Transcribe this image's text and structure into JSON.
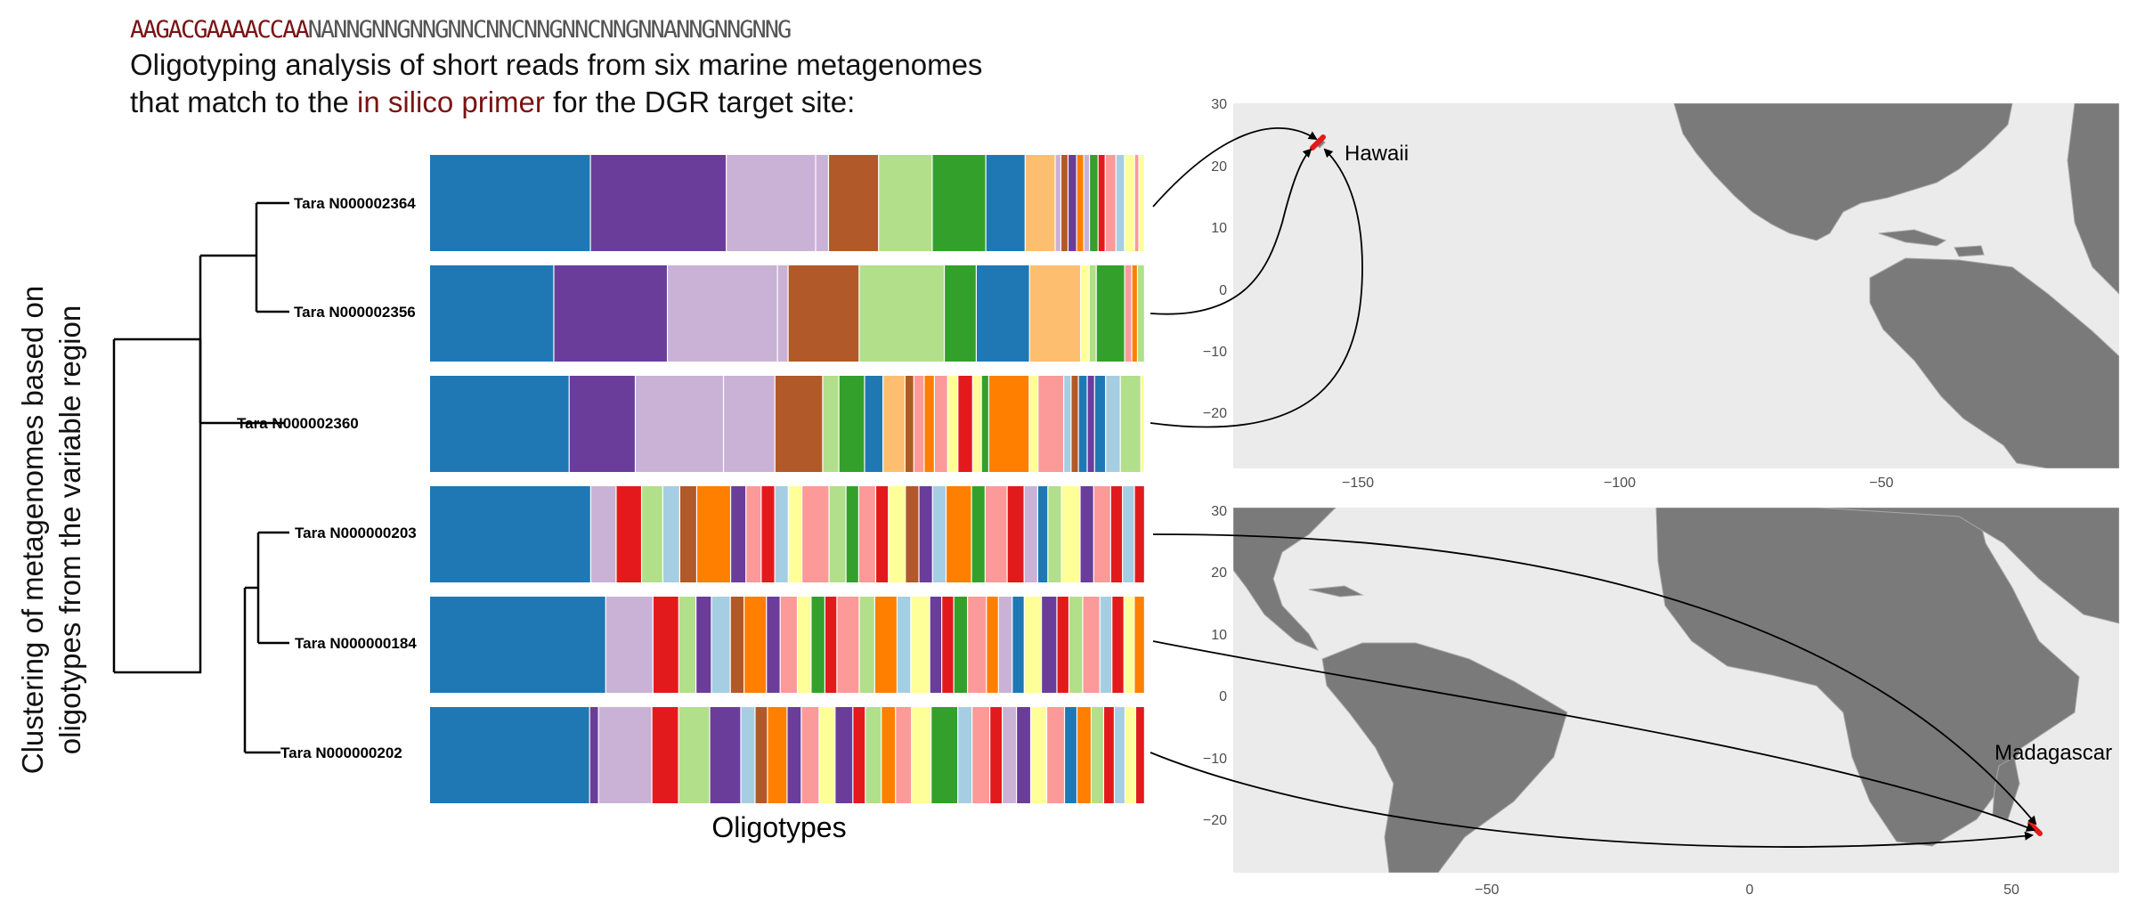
{
  "header": {
    "sequence_prefix": "AAGACGAAAACCAA",
    "sequence_variable": "NANNGNNGNNGNNCNNCNNGNNCNNGNNANNGNNGNNG",
    "title_line1": "Oligotyping analysis of short reads from six marine metagenomes",
    "title_line2_before": "that match to the ",
    "title_line2_highlight": "in silico primer",
    "title_line2_after": " for the DGR target site:"
  },
  "dendrogram": {
    "ylabel_line1": "Clustering of metagenomes based on",
    "ylabel_line2": "oligotypes from the variable region",
    "samples": [
      "Tara N000002364",
      "Tara N000002356",
      "Tara N000002360",
      "Tara N000000203",
      "Tara N000000184",
      "Tara N000000202"
    ]
  },
  "oligotypes": {
    "xlabel": "Oligotypes",
    "palette": [
      "#1f78b4",
      "#6a3d9a",
      "#cab2d6",
      "#b15928",
      "#b2df8a",
      "#33a02c",
      "#fdbf6f",
      "#ff7f00",
      "#e31a1c",
      "#fb9a99",
      "#a6cee3",
      "#ffff99"
    ],
    "rows": [
      [
        [
          0,
          0.225
        ],
        [
          1,
          0.19
        ],
        [
          2,
          0.125
        ],
        [
          2,
          0.018
        ],
        [
          3,
          0.07
        ],
        [
          4,
          0.075
        ],
        [
          5,
          0.075
        ],
        [
          0,
          0.055
        ],
        [
          6,
          0.042
        ],
        [
          2,
          0.008
        ],
        [
          3,
          0.01
        ],
        [
          1,
          0.012
        ],
        [
          7,
          0.01
        ],
        [
          2,
          0.008
        ],
        [
          5,
          0.012
        ],
        [
          8,
          0.01
        ],
        [
          9,
          0.015
        ],
        [
          10,
          0.012
        ],
        [
          11,
          0.014
        ],
        [
          9,
          0.006
        ],
        [
          11,
          0.008
        ]
      ],
      [
        [
          0,
          0.175
        ],
        [
          1,
          0.16
        ],
        [
          2,
          0.155
        ],
        [
          2,
          0.015
        ],
        [
          3,
          0.1
        ],
        [
          4,
          0.12
        ],
        [
          5,
          0.045
        ],
        [
          0,
          0.075
        ],
        [
          6,
          0.072
        ],
        [
          11,
          0.012
        ],
        [
          4,
          0.01
        ],
        [
          5,
          0.04
        ],
        [
          9,
          0.01
        ],
        [
          7,
          0.008
        ],
        [
          4,
          0.01
        ]
      ],
      [
        [
          0,
          0.19
        ],
        [
          1,
          0.09
        ],
        [
          2,
          0.12
        ],
        [
          2,
          0.07
        ],
        [
          3,
          0.065
        ],
        [
          4,
          0.022
        ],
        [
          5,
          0.035
        ],
        [
          0,
          0.025
        ],
        [
          6,
          0.03
        ],
        [
          3,
          0.012
        ],
        [
          9,
          0.014
        ],
        [
          7,
          0.014
        ],
        [
          9,
          0.018
        ],
        [
          11,
          0.014
        ],
        [
          8,
          0.02
        ],
        [
          11,
          0.012
        ],
        [
          5,
          0.01
        ],
        [
          7,
          0.055
        ],
        [
          11,
          0.012
        ],
        [
          9,
          0.035
        ],
        [
          10,
          0.01
        ],
        [
          3,
          0.01
        ],
        [
          0,
          0.012
        ],
        [
          1,
          0.01
        ],
        [
          0,
          0.015
        ],
        [
          10,
          0.02
        ],
        [
          4,
          0.028
        ],
        [
          11,
          0.005
        ]
      ],
      [
        [
          0,
          0.19
        ],
        [
          2,
          0.03
        ],
        [
          8,
          0.03
        ],
        [
          4,
          0.025
        ],
        [
          10,
          0.02
        ],
        [
          3,
          0.02
        ],
        [
          7,
          0.04
        ],
        [
          1,
          0.018
        ],
        [
          9,
          0.018
        ],
        [
          8,
          0.016
        ],
        [
          10,
          0.016
        ],
        [
          11,
          0.016
        ],
        [
          9,
          0.032
        ],
        [
          4,
          0.02
        ],
        [
          5,
          0.015
        ],
        [
          9,
          0.02
        ],
        [
          8,
          0.015
        ],
        [
          11,
          0.02
        ],
        [
          3,
          0.016
        ],
        [
          1,
          0.016
        ],
        [
          10,
          0.016
        ],
        [
          7,
          0.03
        ],
        [
          5,
          0.016
        ],
        [
          9,
          0.026
        ],
        [
          8,
          0.02
        ],
        [
          2,
          0.016
        ],
        [
          0,
          0.012
        ],
        [
          4,
          0.016
        ],
        [
          11,
          0.022
        ],
        [
          1,
          0.016
        ],
        [
          9,
          0.02
        ],
        [
          8,
          0.014
        ],
        [
          10,
          0.014
        ],
        [
          8,
          0.012
        ]
      ],
      [
        [
          0,
          0.205
        ],
        [
          2,
          0.055
        ],
        [
          8,
          0.03
        ],
        [
          4,
          0.02
        ],
        [
          1,
          0.018
        ],
        [
          10,
          0.022
        ],
        [
          3,
          0.016
        ],
        [
          7,
          0.026
        ],
        [
          1,
          0.016
        ],
        [
          9,
          0.02
        ],
        [
          11,
          0.016
        ],
        [
          5,
          0.016
        ],
        [
          8,
          0.014
        ],
        [
          9,
          0.026
        ],
        [
          4,
          0.018
        ],
        [
          7,
          0.026
        ],
        [
          10,
          0.016
        ],
        [
          11,
          0.022
        ],
        [
          1,
          0.014
        ],
        [
          8,
          0.014
        ],
        [
          5,
          0.016
        ],
        [
          9,
          0.022
        ],
        [
          7,
          0.014
        ],
        [
          2,
          0.016
        ],
        [
          0,
          0.014
        ],
        [
          11,
          0.02
        ],
        [
          1,
          0.018
        ],
        [
          8,
          0.014
        ],
        [
          4,
          0.016
        ],
        [
          9,
          0.02
        ],
        [
          10,
          0.014
        ],
        [
          8,
          0.014
        ],
        [
          11,
          0.012
        ],
        [
          7,
          0.012
        ]
      ],
      [
        [
          0,
          0.18
        ],
        [
          1,
          0.01
        ],
        [
          2,
          0.06
        ],
        [
          8,
          0.03
        ],
        [
          4,
          0.035
        ],
        [
          1,
          0.035
        ],
        [
          10,
          0.016
        ],
        [
          3,
          0.014
        ],
        [
          7,
          0.022
        ],
        [
          1,
          0.016
        ],
        [
          9,
          0.02
        ],
        [
          11,
          0.018
        ],
        [
          1,
          0.02
        ],
        [
          8,
          0.014
        ],
        [
          4,
          0.018
        ],
        [
          7,
          0.016
        ],
        [
          9,
          0.018
        ],
        [
          11,
          0.022
        ],
        [
          5,
          0.03
        ],
        [
          10,
          0.016
        ],
        [
          9,
          0.02
        ],
        [
          8,
          0.014
        ],
        [
          2,
          0.016
        ],
        [
          1,
          0.016
        ],
        [
          11,
          0.018
        ],
        [
          9,
          0.02
        ],
        [
          0,
          0.014
        ],
        [
          7,
          0.016
        ],
        [
          4,
          0.014
        ],
        [
          8,
          0.012
        ],
        [
          10,
          0.012
        ],
        [
          11,
          0.012
        ],
        [
          8,
          0.01
        ]
      ]
    ]
  },
  "map_top": {
    "label": "Hawaii",
    "x_ticks": [
      "−150",
      "−100",
      "−50"
    ],
    "y_ticks": [
      "30",
      "20",
      "10",
      "0",
      "−10",
      "−20"
    ]
  },
  "map_bottom": {
    "label": "Madagascar",
    "x_ticks": [
      "−50",
      "0",
      "50"
    ],
    "y_ticks": [
      "30",
      "20",
      "10",
      "0",
      "−10",
      "−20"
    ]
  }
}
